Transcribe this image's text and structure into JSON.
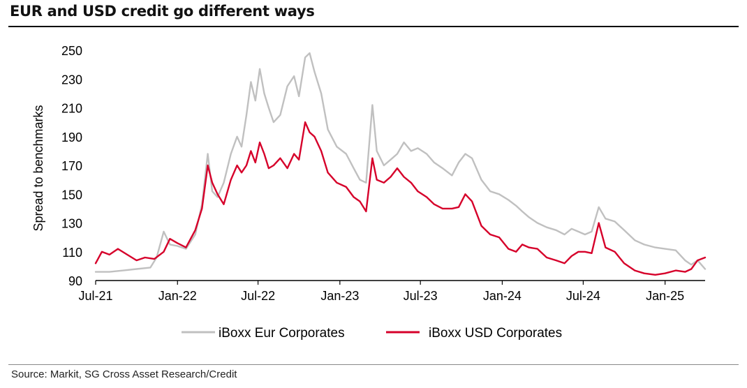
{
  "title": "EUR and USD credit go different ways",
  "source": "Source: Markit, SG Cross Asset Research/Credit",
  "chart_data": {
    "type": "line",
    "title": "EUR and USD credit go different ways",
    "ylabel": "Spread to benchmarks",
    "xlabel": "",
    "ylim": [
      90,
      250
    ],
    "yticks": [
      90,
      110,
      130,
      150,
      170,
      190,
      210,
      230,
      250
    ],
    "xlim": [
      "2021-07",
      "2025-04"
    ],
    "xticks": [
      {
        "label": "Jul-21",
        "date": "2021-07"
      },
      {
        "label": "Jan-22",
        "date": "2022-01"
      },
      {
        "label": "Jul-22",
        "date": "2022-07"
      },
      {
        "label": "Jan-23",
        "date": "2023-01"
      },
      {
        "label": "Jul-23",
        "date": "2023-07"
      },
      {
        "label": "Jan-24",
        "date": "2024-01"
      },
      {
        "label": "Jul-24",
        "date": "2024-07"
      },
      {
        "label": "Jan-25",
        "date": "2025-01"
      }
    ],
    "grid": false,
    "legend": "bottom",
    "series": [
      {
        "name": "iBoxx Eur Corporates",
        "color": "#c0c0c0",
        "points": [
          [
            "2021-07-01",
            96
          ],
          [
            "2021-08-01",
            96
          ],
          [
            "2021-09-01",
            97
          ],
          [
            "2021-10-01",
            98
          ],
          [
            "2021-11-01",
            99
          ],
          [
            "2021-11-15",
            106
          ],
          [
            "2021-12-01",
            124
          ],
          [
            "2021-12-15",
            115
          ],
          [
            "2022-01-01",
            114
          ],
          [
            "2022-01-20",
            112
          ],
          [
            "2022-02-10",
            122
          ],
          [
            "2022-02-25",
            143
          ],
          [
            "2022-03-10",
            178
          ],
          [
            "2022-03-20",
            152
          ],
          [
            "2022-04-01",
            148
          ],
          [
            "2022-04-15",
            158
          ],
          [
            "2022-05-01",
            178
          ],
          [
            "2022-05-15",
            190
          ],
          [
            "2022-05-25",
            183
          ],
          [
            "2022-06-05",
            205
          ],
          [
            "2022-06-15",
            228
          ],
          [
            "2022-06-25",
            215
          ],
          [
            "2022-07-05",
            237
          ],
          [
            "2022-07-15",
            220
          ],
          [
            "2022-07-25",
            210
          ],
          [
            "2022-08-05",
            200
          ],
          [
            "2022-08-20",
            205
          ],
          [
            "2022-09-05",
            225
          ],
          [
            "2022-09-20",
            232
          ],
          [
            "2022-10-01",
            218
          ],
          [
            "2022-10-15",
            245
          ],
          [
            "2022-10-25",
            248
          ],
          [
            "2022-11-05",
            235
          ],
          [
            "2022-11-20",
            220
          ],
          [
            "2022-12-05",
            195
          ],
          [
            "2022-12-25",
            183
          ],
          [
            "2023-01-15",
            178
          ],
          [
            "2023-02-01",
            168
          ],
          [
            "2023-02-15",
            160
          ],
          [
            "2023-03-01",
            158
          ],
          [
            "2023-03-15",
            212
          ],
          [
            "2023-03-25",
            180
          ],
          [
            "2023-04-10",
            170
          ],
          [
            "2023-04-25",
            174
          ],
          [
            "2023-05-10",
            178
          ],
          [
            "2023-05-25",
            186
          ],
          [
            "2023-06-10",
            180
          ],
          [
            "2023-06-25",
            182
          ],
          [
            "2023-07-15",
            178
          ],
          [
            "2023-08-01",
            172
          ],
          [
            "2023-08-20",
            168
          ],
          [
            "2023-09-10",
            163
          ],
          [
            "2023-09-25",
            172
          ],
          [
            "2023-10-10",
            178
          ],
          [
            "2023-10-25",
            175
          ],
          [
            "2023-11-15",
            160
          ],
          [
            "2023-12-05",
            152
          ],
          [
            "2023-12-25",
            150
          ],
          [
            "2024-01-15",
            146
          ],
          [
            "2024-02-01",
            142
          ],
          [
            "2024-02-15",
            138
          ],
          [
            "2024-03-01",
            134
          ],
          [
            "2024-03-20",
            130
          ],
          [
            "2024-04-10",
            127
          ],
          [
            "2024-05-01",
            125
          ],
          [
            "2024-05-20",
            122
          ],
          [
            "2024-06-05",
            126
          ],
          [
            "2024-06-20",
            124
          ],
          [
            "2024-07-05",
            122
          ],
          [
            "2024-07-20",
            124
          ],
          [
            "2024-08-05",
            141
          ],
          [
            "2024-08-20",
            133
          ],
          [
            "2024-09-10",
            131
          ],
          [
            "2024-10-01",
            125
          ],
          [
            "2024-10-25",
            118
          ],
          [
            "2024-11-15",
            115
          ],
          [
            "2024-12-10",
            113
          ],
          [
            "2025-01-01",
            112
          ],
          [
            "2025-01-25",
            111
          ],
          [
            "2025-02-15",
            104
          ],
          [
            "2025-03-01",
            101
          ],
          [
            "2025-03-15",
            104
          ],
          [
            "2025-04-01",
            98
          ]
        ]
      },
      {
        "name": "iBoxx USD Corporates",
        "color": "#d6002a",
        "points": [
          [
            "2021-07-01",
            102
          ],
          [
            "2021-07-15",
            110
          ],
          [
            "2021-08-01",
            108
          ],
          [
            "2021-08-20",
            112
          ],
          [
            "2021-09-10",
            108
          ],
          [
            "2021-10-01",
            104
          ],
          [
            "2021-10-20",
            106
          ],
          [
            "2021-11-10",
            105
          ],
          [
            "2021-12-01",
            110
          ],
          [
            "2021-12-15",
            119
          ],
          [
            "2022-01-01",
            116
          ],
          [
            "2022-01-20",
            113
          ],
          [
            "2022-02-10",
            125
          ],
          [
            "2022-02-25",
            140
          ],
          [
            "2022-03-10",
            170
          ],
          [
            "2022-03-20",
            158
          ],
          [
            "2022-04-01",
            150
          ],
          [
            "2022-04-15",
            143
          ],
          [
            "2022-05-01",
            160
          ],
          [
            "2022-05-15",
            170
          ],
          [
            "2022-05-25",
            165
          ],
          [
            "2022-06-05",
            170
          ],
          [
            "2022-06-15",
            180
          ],
          [
            "2022-06-25",
            172
          ],
          [
            "2022-07-05",
            186
          ],
          [
            "2022-07-15",
            178
          ],
          [
            "2022-07-25",
            168
          ],
          [
            "2022-08-05",
            170
          ],
          [
            "2022-08-20",
            175
          ],
          [
            "2022-09-05",
            168
          ],
          [
            "2022-09-20",
            178
          ],
          [
            "2022-10-01",
            174
          ],
          [
            "2022-10-15",
            200
          ],
          [
            "2022-10-25",
            193
          ],
          [
            "2022-11-05",
            190
          ],
          [
            "2022-11-20",
            180
          ],
          [
            "2022-12-05",
            165
          ],
          [
            "2022-12-25",
            158
          ],
          [
            "2023-01-15",
            155
          ],
          [
            "2023-02-01",
            148
          ],
          [
            "2023-02-15",
            145
          ],
          [
            "2023-03-01",
            138
          ],
          [
            "2023-03-15",
            175
          ],
          [
            "2023-03-25",
            160
          ],
          [
            "2023-04-10",
            158
          ],
          [
            "2023-04-25",
            162
          ],
          [
            "2023-05-10",
            168
          ],
          [
            "2023-05-25",
            162
          ],
          [
            "2023-06-10",
            158
          ],
          [
            "2023-06-25",
            152
          ],
          [
            "2023-07-15",
            148
          ],
          [
            "2023-08-01",
            143
          ],
          [
            "2023-08-20",
            140
          ],
          [
            "2023-09-10",
            140
          ],
          [
            "2023-09-25",
            141
          ],
          [
            "2023-10-10",
            150
          ],
          [
            "2023-10-25",
            145
          ],
          [
            "2023-11-15",
            128
          ],
          [
            "2023-12-05",
            122
          ],
          [
            "2023-12-25",
            120
          ],
          [
            "2024-01-15",
            112
          ],
          [
            "2024-02-01",
            110
          ],
          [
            "2024-02-15",
            115
          ],
          [
            "2024-03-01",
            113
          ],
          [
            "2024-03-20",
            112
          ],
          [
            "2024-04-10",
            106
          ],
          [
            "2024-05-01",
            104
          ],
          [
            "2024-05-20",
            102
          ],
          [
            "2024-06-05",
            107
          ],
          [
            "2024-06-20",
            110
          ],
          [
            "2024-07-05",
            110
          ],
          [
            "2024-07-20",
            109
          ],
          [
            "2024-08-05",
            130
          ],
          [
            "2024-08-20",
            113
          ],
          [
            "2024-09-10",
            110
          ],
          [
            "2024-10-01",
            102
          ],
          [
            "2024-10-25",
            97
          ],
          [
            "2024-11-15",
            95
          ],
          [
            "2024-12-10",
            94
          ],
          [
            "2025-01-01",
            95
          ],
          [
            "2025-01-25",
            97
          ],
          [
            "2025-02-15",
            96
          ],
          [
            "2025-03-01",
            98
          ],
          [
            "2025-03-15",
            104
          ],
          [
            "2025-04-01",
            106
          ]
        ]
      }
    ]
  }
}
